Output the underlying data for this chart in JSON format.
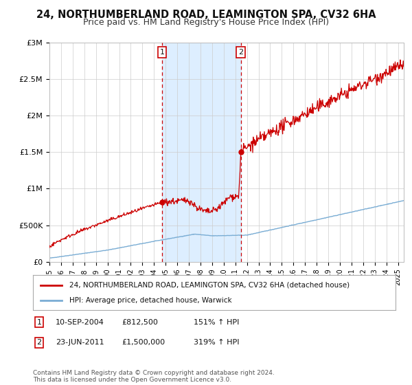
{
  "title": "24, NORTHUMBERLAND ROAD, LEAMINGTON SPA, CV32 6HA",
  "subtitle": "Price paid vs. HM Land Registry's House Price Index (HPI)",
  "title_fontsize": 10.5,
  "subtitle_fontsize": 9,
  "ylabel_ticks": [
    "£0",
    "£500K",
    "£1M",
    "£1.5M",
    "£2M",
    "£2.5M",
    "£3M"
  ],
  "ytick_values": [
    0,
    500000,
    1000000,
    1500000,
    2000000,
    2500000,
    3000000
  ],
  "ylim": [
    0,
    3000000
  ],
  "xlim_start": 1995.0,
  "xlim_end": 2025.5,
  "sale1_year": 2004.69,
  "sale1_value": 812500,
  "sale1_label": "1",
  "sale1_date": "10-SEP-2004",
  "sale1_price_str": "£812,500",
  "sale1_hpi_str": "151% ↑ HPI",
  "sale2_year": 2011.47,
  "sale2_value": 1500000,
  "sale2_label": "2",
  "sale2_date": "23-JUN-2011",
  "sale2_price_str": "£1,500,000",
  "sale2_hpi_str": "319% ↑ HPI",
  "red_line_color": "#cc0000",
  "blue_line_color": "#7aadd4",
  "shade_color": "#ddeeff",
  "marker_box_color": "#cc0000",
  "legend_label_red": "24, NORTHUMBERLAND ROAD, LEAMINGTON SPA, CV32 6HA (detached house)",
  "legend_label_blue": "HPI: Average price, detached house, Warwick",
  "footnote": "Contains HM Land Registry data © Crown copyright and database right 2024.\nThis data is licensed under the Open Government Licence v3.0.",
  "background_color": "#ffffff",
  "grid_color": "#cccccc"
}
